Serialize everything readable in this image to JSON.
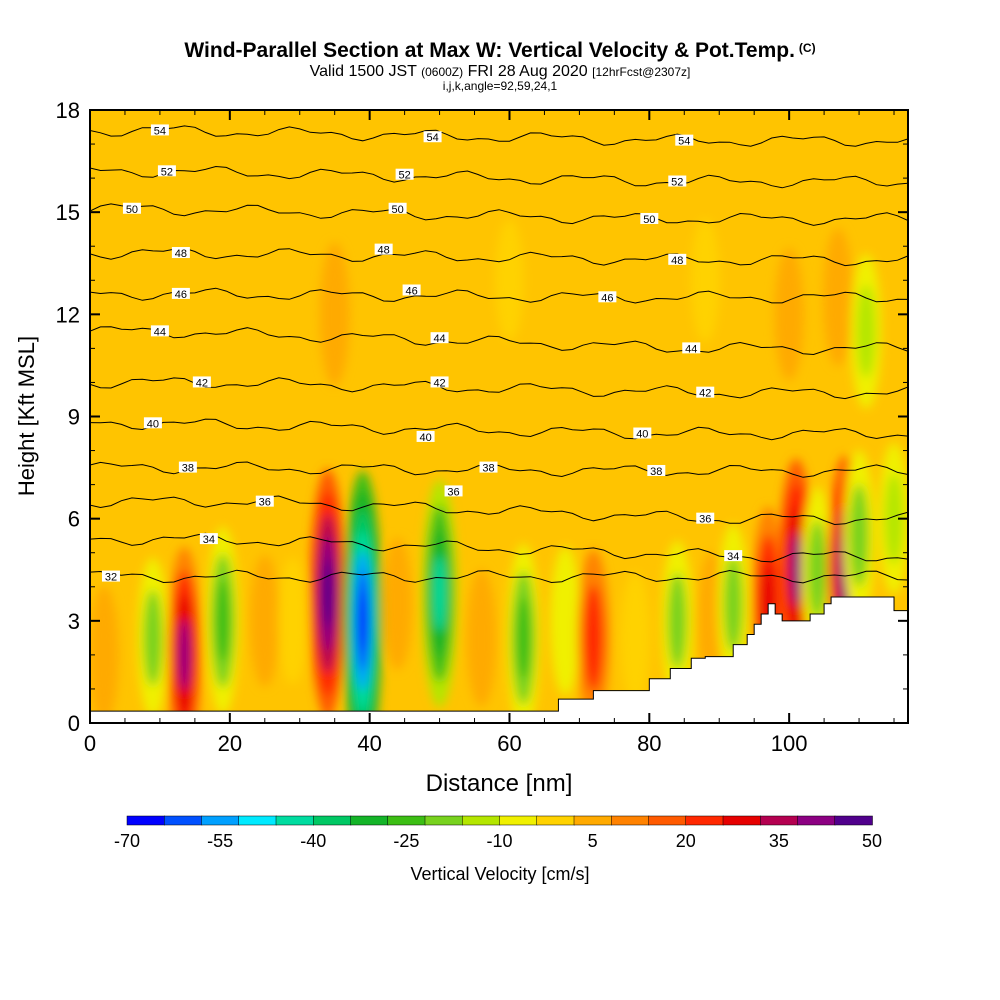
{
  "header": {
    "title_main": "Wind-Parallel Section at Max W: Vertical Velocity & Pot.Temp.",
    "title_copyright": "(C)",
    "valid_prefix": "Valid 1500 JST",
    "valid_utc": "(0600Z)",
    "valid_date": "FRI 28 Aug 2020",
    "forecast_info": "[12hrFcst@2307z]",
    "indices": "i,j,k,angle=92,59,24,1"
  },
  "chart_data": {
    "type": "heatmap",
    "title": "Wind-Parallel Section at Max W: Vertical Velocity & Pot.Temp.",
    "xlabel": "Distance [nm]",
    "ylabel": "Height [Kft MSL]",
    "xlim": [
      0,
      117
    ],
    "ylim": [
      0,
      18
    ],
    "x_ticks": [
      0,
      20,
      40,
      60,
      80,
      100
    ],
    "y_ticks": [
      0,
      3,
      6,
      9,
      12,
      15,
      18
    ],
    "colorbar": {
      "label": "Vertical Velocity [cm/s]",
      "tick_labels": [
        "-70",
        "-55",
        "-40",
        "-25",
        "-10",
        "5",
        "20",
        "35",
        "50"
      ],
      "colors": [
        "#0000ff",
        "#0050ff",
        "#00a0ff",
        "#00eaff",
        "#00dca0",
        "#00c864",
        "#14b428",
        "#3cbe14",
        "#78d21e",
        "#b4e600",
        "#f0f000",
        "#ffd200",
        "#ffaa00",
        "#ff8200",
        "#ff5a00",
        "#ff2800",
        "#e60000",
        "#b40050",
        "#8c0082",
        "#50008c"
      ]
    },
    "velocity_cells": [
      {
        "x": 2,
        "z": 2.0,
        "w": 10
      },
      {
        "x": 9,
        "z": 2.5,
        "w": -18
      },
      {
        "x": 13.5,
        "z": 2.0,
        "w": 38
      },
      {
        "x": 19,
        "z": 3.0,
        "w": -28
      },
      {
        "x": 25,
        "z": 3.0,
        "w": 8
      },
      {
        "x": 29,
        "z": 3.0,
        "w": -6
      },
      {
        "x": 34,
        "z": 3.8,
        "w": 50
      },
      {
        "x": 39,
        "z": 3.0,
        "w": -68
      },
      {
        "x": 44,
        "z": 3.5,
        "w": 8
      },
      {
        "x": 50,
        "z": 3.8,
        "w": -42
      },
      {
        "x": 56,
        "z": 2.5,
        "w": 10
      },
      {
        "x": 62,
        "z": 2.5,
        "w": -28
      },
      {
        "x": 68,
        "z": 3.0,
        "w": -14
      },
      {
        "x": 72,
        "z": 2.5,
        "w": 24
      },
      {
        "x": 78,
        "z": 2.5,
        "w": -8
      },
      {
        "x": 84,
        "z": 3.0,
        "w": -18
      },
      {
        "x": 89,
        "z": 3.0,
        "w": 10
      },
      {
        "x": 92,
        "z": 3.5,
        "w": -18
      },
      {
        "x": 97,
        "z": 3.5,
        "w": 30
      },
      {
        "x": 101,
        "z": 4.5,
        "w": 40
      },
      {
        "x": 104,
        "z": 4.5,
        "w": -20
      },
      {
        "x": 108,
        "z": 4.5,
        "w": 42
      },
      {
        "x": 110,
        "z": 5.5,
        "w": -22
      },
      {
        "x": 115,
        "z": 6.0,
        "w": -15
      },
      {
        "x": 88,
        "z": 13.0,
        "w": 5
      },
      {
        "x": 100,
        "z": 12.0,
        "w": 8
      },
      {
        "x": 107,
        "z": 12.5,
        "w": 10
      },
      {
        "x": 111,
        "z": 11.5,
        "w": -16
      },
      {
        "x": 35,
        "z": 12.0,
        "w": 12
      },
      {
        "x": 60,
        "z": 13.0,
        "w": 4
      }
    ],
    "terrain": [
      [
        0,
        0.35
      ],
      [
        67,
        0.35
      ],
      [
        67,
        0.7
      ],
      [
        72,
        0.7
      ],
      [
        72,
        0.95
      ],
      [
        80,
        0.95
      ],
      [
        80,
        1.3
      ],
      [
        83,
        1.3
      ],
      [
        83,
        1.6
      ],
      [
        86,
        1.6
      ],
      [
        86,
        1.9
      ],
      [
        88,
        1.9
      ],
      [
        88,
        1.95
      ],
      [
        92,
        1.95
      ],
      [
        92,
        2.3
      ],
      [
        94,
        2.3
      ],
      [
        94,
        2.6
      ],
      [
        95,
        2.6
      ],
      [
        95,
        2.9
      ],
      [
        96,
        2.9
      ],
      [
        96,
        3.2
      ],
      [
        97,
        3.2
      ],
      [
        97,
        3.5
      ],
      [
        98,
        3.5
      ],
      [
        98,
        3.2
      ],
      [
        99,
        3.2
      ],
      [
        99,
        3.0
      ],
      [
        103,
        3.0
      ],
      [
        103,
        3.2
      ],
      [
        105,
        3.2
      ],
      [
        105,
        3.5
      ],
      [
        106,
        3.5
      ],
      [
        106,
        3.7
      ],
      [
        115,
        3.7
      ],
      [
        115,
        3.3
      ],
      [
        117,
        3.3
      ]
    ],
    "isentropes": [
      {
        "theta": 32,
        "labels": [
          {
            "x": 3,
            "z": 4.3
          }
        ]
      },
      {
        "theta": 34,
        "labels": [
          {
            "x": 17,
            "z": 5.4
          },
          {
            "x": 92,
            "z": 4.9
          }
        ]
      },
      {
        "theta": 36,
        "labels": [
          {
            "x": 25,
            "z": 6.5
          },
          {
            "x": 52,
            "z": 6.8
          },
          {
            "x": 88,
            "z": 6.0
          }
        ]
      },
      {
        "theta": 38,
        "labels": [
          {
            "x": 14,
            "z": 7.5
          },
          {
            "x": 57,
            "z": 7.5
          },
          {
            "x": 81,
            "z": 7.4
          }
        ]
      },
      {
        "theta": 40,
        "labels": [
          {
            "x": 9,
            "z": 8.8
          },
          {
            "x": 48,
            "z": 8.4
          },
          {
            "x": 79,
            "z": 8.5
          }
        ]
      },
      {
        "theta": 42,
        "labels": [
          {
            "x": 16,
            "z": 10.0
          },
          {
            "x": 50,
            "z": 10.0
          },
          {
            "x": 88,
            "z": 9.7
          }
        ]
      },
      {
        "theta": 44,
        "labels": [
          {
            "x": 10,
            "z": 11.5
          },
          {
            "x": 50,
            "z": 11.3
          },
          {
            "x": 86,
            "z": 11.0
          }
        ]
      },
      {
        "theta": 46,
        "labels": [
          {
            "x": 13,
            "z": 12.6
          },
          {
            "x": 46,
            "z": 12.7
          },
          {
            "x": 74,
            "z": 12.5
          }
        ]
      },
      {
        "theta": 48,
        "labels": [
          {
            "x": 13,
            "z": 13.8
          },
          {
            "x": 42,
            "z": 13.9
          },
          {
            "x": 84,
            "z": 13.6
          }
        ]
      },
      {
        "theta": 50,
        "labels": [
          {
            "x": 6,
            "z": 15.1
          },
          {
            "x": 44,
            "z": 15.1
          },
          {
            "x": 80,
            "z": 14.8
          }
        ]
      },
      {
        "theta": 52,
        "labels": [
          {
            "x": 11,
            "z": 16.2
          },
          {
            "x": 45,
            "z": 16.1
          },
          {
            "x": 84,
            "z": 15.9
          }
        ]
      },
      {
        "theta": 54,
        "labels": [
          {
            "x": 10,
            "z": 17.4
          },
          {
            "x": 49,
            "z": 17.2
          },
          {
            "x": 85,
            "z": 17.1
          }
        ]
      }
    ]
  }
}
